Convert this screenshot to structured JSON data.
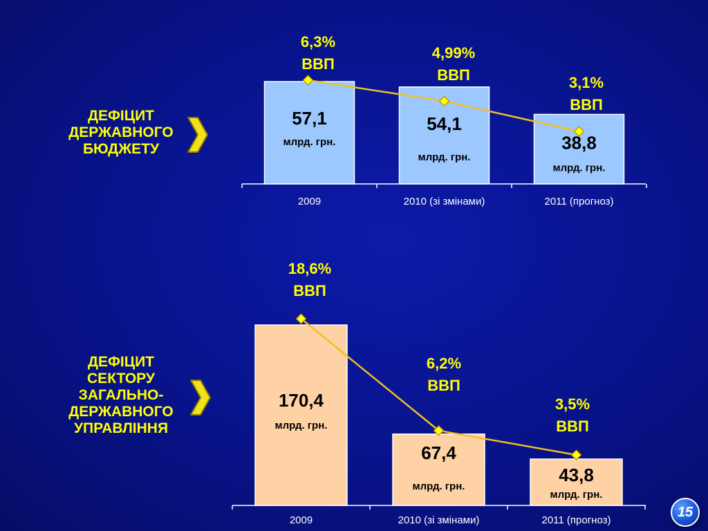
{
  "slide": {
    "page_number": "15"
  },
  "labels": {
    "budget": [
      "ДЕФІЦИТ",
      "ДЕРЖАВНОГО",
      "БЮДЖЕТУ"
    ],
    "sector": [
      "ДЕФІЦИТ",
      "СЕКТОРУ",
      "ЗАГАЛЬНО-",
      "ДЕРЖАВНОГО",
      "УПРАВЛІННЯ"
    ]
  },
  "colors": {
    "label_text": "#ffff00",
    "chevron": "#f2e21b",
    "budget_bar": "#9cc8ff",
    "sector_bar": "#ffd2a6",
    "line": "#f0c020",
    "marker": "#ffff00",
    "axis_text": "#ffffff"
  },
  "chart_data": [
    {
      "type": "bar",
      "title": "",
      "categories": [
        "2009",
        "2010 (зі змінами)",
        "2011 (прогноз)"
      ],
      "series": [
        {
          "values": [
            57.1,
            54.1,
            38.8
          ]
        },
        {
          "values": [
            6.3,
            4.99,
            3.1
          ]
        }
      ],
      "bar_labels": [
        {
          "value": "57,1",
          "unit": "млрд. грн."
        },
        {
          "value": "54,1",
          "unit": "млрд. грн."
        },
        {
          "value": "38,8",
          "unit": "млрд. грн."
        }
      ],
      "line_labels": [
        {
          "value": "6,3%",
          "unit": "ВВП"
        },
        {
          "value": "4,99%",
          "unit": "ВВП"
        },
        {
          "value": "3,1%",
          "unit": "ВВП"
        }
      ]
    },
    {
      "type": "bar",
      "title": "",
      "categories": [
        "2009",
        "2010 (зі змінами)",
        "2011 (прогноз)"
      ],
      "series": [
        {
          "values": [
            170.4,
            67.4,
            43.8
          ]
        },
        {
          "values": [
            18.6,
            6.2,
            3.5
          ]
        }
      ],
      "bar_labels": [
        {
          "value": "170,4",
          "unit": "млрд. грн."
        },
        {
          "value": "67,4",
          "unit": "млрд. грн."
        },
        {
          "value": "43,8",
          "unit": "млрд. грн."
        }
      ],
      "line_labels": [
        {
          "value": "18,6%",
          "unit": "ВВП"
        },
        {
          "value": "6,2%",
          "unit": "ВВП"
        },
        {
          "value": "3,5%",
          "unit": "ВВП"
        }
      ]
    }
  ]
}
